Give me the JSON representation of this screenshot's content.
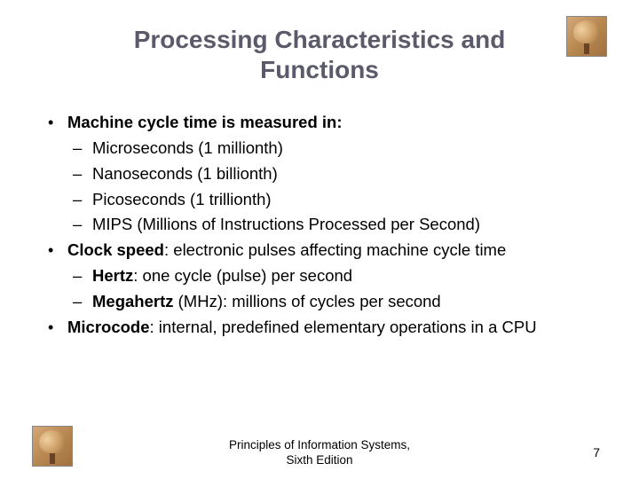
{
  "title": "Processing Characteristics and Functions",
  "colors": {
    "title_color": "#5a5a6a",
    "text_color": "#000000",
    "background": "#ffffff"
  },
  "typography": {
    "title_fontsize": 28,
    "body_fontsize": 18.5,
    "footer_fontsize": 13.5,
    "font_family": "Arial"
  },
  "bullets": [
    {
      "lead_bold": "Machine cycle time is measured in:",
      "rest": "",
      "sub": [
        "Microseconds (1 millionth)",
        "Nanoseconds (1 billionth)",
        "Picoseconds (1 trillionth)",
        "MIPS (Millions of Instructions Processed per Second)"
      ]
    },
    {
      "lead_bold": "Clock speed",
      "rest": ": electronic pulses affecting machine cycle time",
      "sub_rich": [
        {
          "lead_bold": "Hertz",
          "rest": ": one cycle (pulse) per second"
        },
        {
          "lead_bold": "Megahertz",
          "rest": " (MHz): millions of cycles per second"
        }
      ]
    },
    {
      "lead_bold": "Microcode",
      "rest": ": internal, predefined elementary operations in a CPU"
    }
  ],
  "footer_line1": "Principles of Information Systems,",
  "footer_line2": "Sixth Edition",
  "page_number": "7",
  "logo": {
    "name": "tree-logo",
    "bg_gradient": [
      "#d4a878",
      "#b88850",
      "#a07040"
    ],
    "trunk_color": "#6b4226",
    "foliage_colors": [
      "#f0d0a0",
      "#c89860",
      "#8b6b3a"
    ]
  }
}
